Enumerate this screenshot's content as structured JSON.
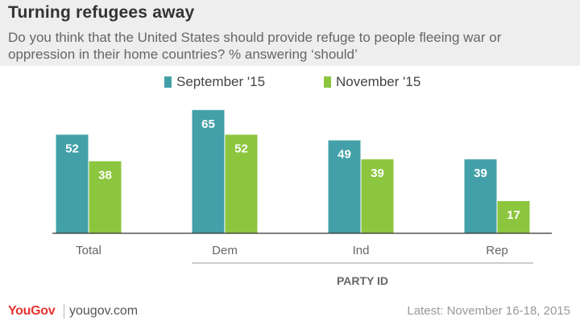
{
  "header": {
    "title": "Turning refugees away",
    "subtitle": "Do you think that the United States should provide refuge to people fleeing war or oppression in their home countries? % answering ‘should’"
  },
  "footer": {
    "logo": "YouGov",
    "url": "yougov.com",
    "date": "Latest: November 16-18, 2015"
  },
  "chart_data": {
    "type": "bar",
    "title": "Turning refugees away",
    "categories": [
      "Total",
      "Dem",
      "Ind",
      "Rep"
    ],
    "series": [
      {
        "name": "September '15",
        "values": [
          52,
          65,
          49,
          39
        ],
        "color": "#43a0a8"
      },
      {
        "name": "November '15",
        "values": [
          38,
          52,
          39,
          17
        ],
        "color": "#8cc63e"
      }
    ],
    "group_label": "PARTY ID",
    "ylim": [
      0,
      70
    ],
    "grid": false,
    "legend": "top-center",
    "data_labels": true,
    "label_color": "#ffffff",
    "axis_color": "#333333",
    "category_label_color": "#666666"
  }
}
